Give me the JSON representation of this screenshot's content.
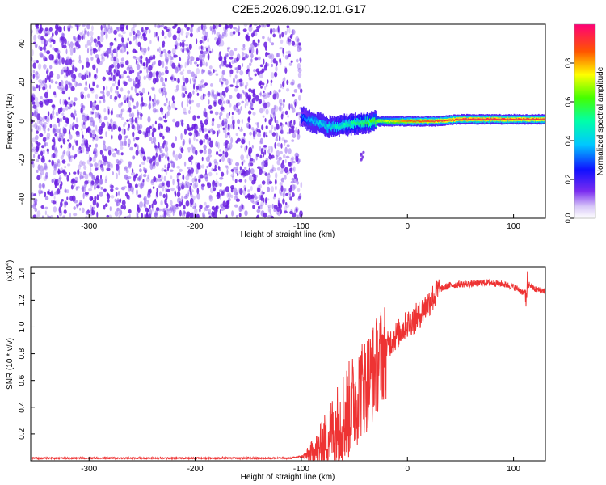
{
  "title": "C2E5.2026.090.12.01.G17",
  "colors": {
    "snr_line": "#ee3333",
    "scatter_noise": "#8a55ee",
    "scatter_dark": "#6a1fe0"
  },
  "chart_data": [
    {
      "type": "heatmap",
      "name": "spectrogram",
      "xlabel": "Height of straight line (km)",
      "ylabel": "Frequency (Hz)",
      "xlim": [
        -355,
        130
      ],
      "ylim": [
        -50,
        50
      ],
      "xticks": [
        -300,
        -200,
        -100,
        0,
        100
      ],
      "yticks": [
        -40,
        -20,
        0,
        20,
        40
      ],
      "colorbar": {
        "label": "Normalized spectral amplitude",
        "range": [
          0,
          1
        ],
        "ticks": [
          "0.0",
          "0.2",
          "0.4",
          "0.6",
          "0.8"
        ],
        "tick_values": [
          0,
          0.2,
          0.4,
          0.6,
          0.8
        ]
      },
      "features": {
        "noise_region_x": [
          -355,
          -100
        ],
        "signal_band": [
          {
            "x": -100,
            "freq": 2,
            "amp": 0.3
          },
          {
            "x": -90,
            "freq": 0,
            "amp": 0.4
          },
          {
            "x": -75,
            "freq": -3,
            "amp": 0.45
          },
          {
            "x": -60,
            "freq": -2,
            "amp": 0.5
          },
          {
            "x": -45,
            "freq": -1,
            "amp": 0.55
          },
          {
            "x": -30,
            "freq": 0,
            "amp": 0.65
          },
          {
            "x": -15,
            "freq": 0,
            "amp": 0.75
          },
          {
            "x": 0,
            "freq": 0,
            "amp": 0.85
          },
          {
            "x": 25,
            "freq": 0,
            "amp": 0.9
          },
          {
            "x": 50,
            "freq": 1,
            "amp": 0.95
          },
          {
            "x": 75,
            "freq": 1,
            "amp": 0.95
          },
          {
            "x": 100,
            "freq": 1,
            "amp": 0.93
          },
          {
            "x": 130,
            "freq": 1,
            "amp": 0.92
          }
        ]
      }
    },
    {
      "type": "line",
      "name": "snr",
      "xlabel": "Height of straight line (km)",
      "ylabel": "SNR (10 * v/v)",
      "scale_label": "(x10",
      "scale_exp": "4",
      "scale_close": ")",
      "xlim": [
        -355,
        130
      ],
      "ylim": [
        0,
        1.45
      ],
      "xticks": [
        -300,
        -200,
        -100,
        0,
        100
      ],
      "yticks": [
        0.2,
        0.4,
        0.6,
        0.8,
        1.0,
        1.2,
        1.4
      ],
      "series": [
        {
          "name": "SNR",
          "x": [
            -355,
            -300,
            -200,
            -110,
            -95,
            -85,
            -75,
            -65,
            -55,
            -45,
            -35,
            -25,
            -15,
            -5,
            0,
            10,
            20,
            30,
            40,
            50,
            60,
            70,
            80,
            90,
            100,
            105,
            110,
            115,
            120,
            130
          ],
          "y": [
            0.02,
            0.02,
            0.02,
            0.02,
            0.04,
            0.08,
            0.18,
            0.28,
            0.38,
            0.52,
            0.62,
            0.78,
            0.9,
            0.98,
            1.02,
            1.08,
            1.18,
            1.28,
            1.31,
            1.32,
            1.32,
            1.33,
            1.33,
            1.32,
            1.3,
            1.28,
            1.25,
            1.32,
            1.28,
            1.27
          ]
        }
      ]
    }
  ]
}
